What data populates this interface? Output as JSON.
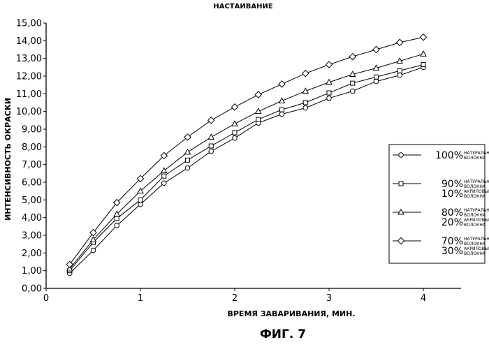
{
  "chart_data": {
    "type": "line",
    "title": "НАСТАИВАНИЕ",
    "xlabel": "ВРЕМЯ ЗАВАРИВАНИЯ, МИН.",
    "ylabel": "ИНТЕНСИВНОСТЬ ОКРАСКИ",
    "figure_label": "ФИГ. 7",
    "xlim": [
      0,
      4.4
    ],
    "ylim": [
      0,
      15
    ],
    "x_ticks": [
      "0",
      "1",
      "2",
      "3",
      "4"
    ],
    "y_ticks": [
      "0,00",
      "1,00",
      "2,00",
      "3,00",
      "4,00",
      "5,00",
      "6,00",
      "7,00",
      "8,00",
      "9,00",
      "10,00",
      "11,00",
      "12,00",
      "13,00",
      "14,00",
      "15,00"
    ],
    "x": [
      0.25,
      0.5,
      0.75,
      1.0,
      1.25,
      1.5,
      1.75,
      2.0,
      2.25,
      2.5,
      2.75,
      3.0,
      3.25,
      3.5,
      3.75,
      4.0
    ],
    "series": [
      {
        "marker": "circle",
        "values": [
          0.85,
          2.15,
          3.55,
          4.75,
          5.95,
          6.8,
          7.75,
          8.5,
          9.35,
          9.85,
          10.2,
          10.75,
          11.15,
          11.7,
          12.05,
          12.5
        ],
        "legend": {
          "pct": "100%",
          "lines": [
            "НАТУРАЛЬНЫЕ",
            "ВОЛОКНА"
          ]
        }
      },
      {
        "marker": "square",
        "values": [
          1.0,
          2.6,
          3.95,
          5.0,
          6.35,
          7.25,
          8.05,
          8.8,
          9.55,
          10.1,
          10.5,
          11.05,
          11.6,
          11.95,
          12.3,
          12.65
        ],
        "legend": {
          "pct": "90%",
          "lines": [
            "НАТУРАЛЬНЫЕ",
            "ВОЛОКНА"
          ],
          "pct2": "10%",
          "lines2": [
            "АКРИЛОВЫЕ",
            "ВОЛОКНА"
          ]
        }
      },
      {
        "marker": "triangle",
        "values": [
          1.1,
          2.75,
          4.2,
          5.5,
          6.65,
          7.7,
          8.55,
          9.3,
          10.0,
          10.6,
          11.15,
          11.65,
          12.1,
          12.45,
          12.85,
          13.25
        ],
        "legend": {
          "pct": "80%",
          "lines": [
            "НАТУРАЛЬНЫЕ",
            "ВОЛОКНА"
          ],
          "pct2": "20%",
          "lines2": [
            "АКРИЛОВЫЕ",
            "ВОЛОКНА"
          ]
        }
      },
      {
        "marker": "diamond",
        "values": [
          1.35,
          3.15,
          4.85,
          6.2,
          7.5,
          8.55,
          9.5,
          10.25,
          10.95,
          11.55,
          12.15,
          12.65,
          13.1,
          13.5,
          13.9,
          14.2
        ],
        "legend": {
          "pct": "70%",
          "lines": [
            "НАТУРАЛЬНЫЕ",
            "ВОЛОКНА"
          ],
          "pct2": "30%",
          "lines2": [
            "АКРИЛОВЫЕ",
            "ВОЛОКНА"
          ]
        }
      }
    ],
    "grid": false,
    "legend_position": "right"
  }
}
